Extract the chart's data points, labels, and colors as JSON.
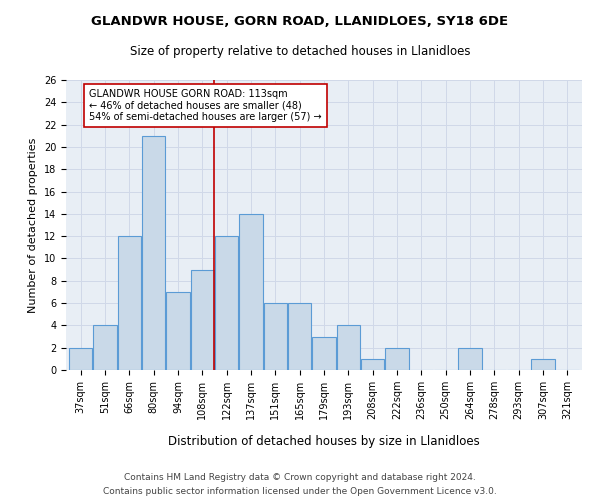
{
  "title": "GLANDWR HOUSE, GORN ROAD, LLANIDLOES, SY18 6DE",
  "subtitle": "Size of property relative to detached houses in Llanidloes",
  "xlabel": "Distribution of detached houses by size in Llanidloes",
  "ylabel": "Number of detached properties",
  "categories": [
    "37sqm",
    "51sqm",
    "66sqm",
    "80sqm",
    "94sqm",
    "108sqm",
    "122sqm",
    "137sqm",
    "151sqm",
    "165sqm",
    "179sqm",
    "193sqm",
    "208sqm",
    "222sqm",
    "236sqm",
    "250sqm",
    "264sqm",
    "278sqm",
    "293sqm",
    "307sqm",
    "321sqm"
  ],
  "values": [
    2,
    4,
    12,
    21,
    7,
    9,
    12,
    14,
    6,
    6,
    3,
    4,
    1,
    2,
    0,
    0,
    2,
    0,
    0,
    1,
    0
  ],
  "bar_color": "#c9d9e8",
  "bar_edge_color": "#5b9bd5",
  "vline_x": 5.5,
  "vline_color": "#c00000",
  "annotation_text": "GLANDWR HOUSE GORN ROAD: 113sqm\n← 46% of detached houses are smaller (48)\n54% of semi-detached houses are larger (57) →",
  "annotation_box_color": "#ffffff",
  "annotation_box_edge": "#c00000",
  "ylim": [
    0,
    26
  ],
  "yticks": [
    0,
    2,
    4,
    6,
    8,
    10,
    12,
    14,
    16,
    18,
    20,
    22,
    24,
    26
  ],
  "grid_color": "#d0d8e8",
  "background_color": "#e8eef5",
  "footer_line1": "Contains HM Land Registry data © Crown copyright and database right 2024.",
  "footer_line2": "Contains public sector information licensed under the Open Government Licence v3.0.",
  "title_fontsize": 9.5,
  "subtitle_fontsize": 8.5,
  "xlabel_fontsize": 8.5,
  "ylabel_fontsize": 8,
  "tick_fontsize": 7,
  "annotation_fontsize": 7,
  "footer_fontsize": 6.5
}
